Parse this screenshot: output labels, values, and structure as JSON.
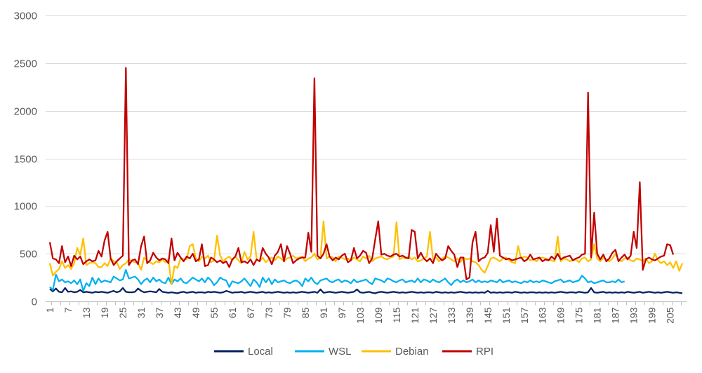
{
  "chart_data": {
    "type": "line",
    "title": "",
    "xlabel": "",
    "ylabel": "",
    "x_start": 1,
    "x_end": 209,
    "x_tick_labels": [
      "1",
      "7",
      "13",
      "19",
      "25",
      "31",
      "37",
      "43",
      "49",
      "55",
      "61",
      "67",
      "73",
      "79",
      "85",
      "91",
      "97",
      "103",
      "109",
      "115",
      "121",
      "127",
      "133",
      "139",
      "145",
      "151",
      "157",
      "163",
      "169",
      "175",
      "181",
      "187",
      "193",
      "199",
      "205"
    ],
    "y_tick_labels": [
      "0",
      "500",
      "1000",
      "1500",
      "2000",
      "2500",
      "3000"
    ],
    "ylim": [
      0,
      3000
    ],
    "grid": true,
    "legend_position": "bottom",
    "legend": [
      "Local",
      "WSL",
      "Debian",
      "RPI"
    ],
    "series": [
      {
        "name": "Local",
        "color": "#002060",
        "start_x": 1,
        "values": [
          130,
          105,
          135,
          100,
          95,
          140,
          100,
          105,
          95,
          100,
          120,
          95,
          100,
          95,
          90,
          100,
          95,
          100,
          95,
          90,
          100,
          110,
          95,
          105,
          140,
          100,
          95,
          95,
          100,
          135,
          110,
          95,
          100,
          105,
          100,
          95,
          130,
          100,
          95,
          90,
          95,
          90,
          85,
          95,
          100,
          90,
          95,
          100,
          90,
          95,
          95,
          90,
          100,
          95,
          100,
          95,
          90,
          95,
          110,
          100,
          90,
          95,
          95,
          100,
          90,
          95,
          100,
          95,
          90,
          95,
          100,
          90,
          95,
          90,
          95,
          100,
          95,
          90,
          95,
          90,
          95,
          90,
          95,
          100,
          95,
          90,
          95,
          100,
          90,
          125,
          90,
          95,
          100,
          95,
          90,
          95,
          100,
          95,
          90,
          95,
          100,
          125,
          95,
          90,
          95,
          100,
          90,
          85,
          95,
          100,
          95,
          90,
          95,
          100,
          95,
          90,
          95,
          90,
          95,
          100,
          95,
          90,
          95,
          90,
          95,
          95,
          90,
          100,
          95,
          90,
          95,
          90,
          95,
          90,
          95,
          100,
          95,
          90,
          95,
          90,
          95,
          90,
          95,
          90,
          110,
          90,
          95,
          90,
          95,
          90,
          95,
          95,
          90,
          100,
          95,
          90,
          95,
          90,
          95,
          95,
          90,
          95,
          90,
          95,
          90,
          95,
          90,
          95,
          100,
          95,
          90,
          95,
          95,
          90,
          100,
          95,
          90,
          95,
          140,
          95,
          90,
          95,
          100,
          90,
          95,
          90,
          95,
          90,
          95,
          90,
          100,
          95,
          90,
          95,
          100,
          90,
          95,
          100,
          95,
          90,
          95,
          90,
          95,
          100,
          95,
          90,
          95,
          90,
          85
        ]
      },
      {
        "name": "WSL",
        "color": "#00b0f0",
        "start_x": 1,
        "values": [
          150,
          120,
          280,
          210,
          230,
          200,
          210,
          190,
          220,
          180,
          230,
          110,
          190,
          160,
          250,
          180,
          240,
          200,
          220,
          210,
          200,
          260,
          240,
          220,
          230,
          330,
          240,
          250,
          260,
          230,
          180,
          220,
          240,
          200,
          250,
          210,
          230,
          200,
          190,
          250,
          180,
          230,
          210,
          240,
          200,
          190,
          220,
          250,
          230,
          210,
          240,
          200,
          250,
          220,
          170,
          200,
          250,
          230,
          220,
          150,
          210,
          200,
          190,
          210,
          240,
          200,
          160,
          230,
          200,
          150,
          250,
          200,
          240,
          180,
          230,
          200,
          210,
          220,
          200,
          190,
          210,
          220,
          200,
          160,
          240,
          210,
          250,
          200,
          180,
          220,
          230,
          240,
          210,
          200,
          220,
          230,
          200,
          220,
          210,
          190,
          230,
          200,
          210,
          220,
          230,
          200,
          180,
          240,
          230,
          220,
          200,
          240,
          230,
          210,
          200,
          220,
          230,
          200,
          210,
          220,
          200,
          240,
          200,
          230,
          220,
          200,
          230,
          210,
          200,
          220,
          240,
          200,
          170,
          210,
          230,
          200,
          220,
          200,
          210,
          230,
          200,
          220,
          200,
          210,
          200,
          220,
          210,
          200,
          230,
          200,
          210,
          220,
          200,
          210,
          200,
          190,
          210,
          200,
          220,
          200,
          210,
          200,
          220,
          210,
          200,
          190,
          210,
          220,
          230,
          200,
          210,
          220,
          200,
          210,
          220,
          270,
          240,
          200,
          210,
          190,
          200,
          210,
          220,
          200,
          200,
          210,
          200,
          230,
          200,
          210
        ]
      },
      {
        "name": "Debian",
        "color": "#ffc000",
        "start_x": 1,
        "values": [
          400,
          270,
          310,
          340,
          420,
          350,
          380,
          340,
          400,
          560,
          490,
          660,
          380,
          400,
          410,
          400,
          360,
          360,
          400,
          370,
          450,
          420,
          410,
          340,
          380,
          400,
          440,
          420,
          410,
          400,
          330,
          460,
          420,
          410,
          390,
          420,
          410,
          440,
          410,
          440,
          180,
          370,
          350,
          450,
          440,
          440,
          580,
          600,
          450,
          420,
          470,
          450,
          480,
          410,
          430,
          690,
          480,
          420,
          450,
          470,
          430,
          470,
          430,
          400,
          520,
          440,
          470,
          730,
          440,
          420,
          460,
          410,
          440,
          460,
          430,
          470,
          450,
          420,
          450,
          460,
          480,
          450,
          460,
          470,
          420,
          450,
          460,
          500,
          440,
          460,
          840,
          450,
          470,
          460,
          420,
          470,
          460,
          440,
          450,
          430,
          460,
          440,
          420,
          470,
          450,
          480,
          420,
          450,
          460,
          470,
          450,
          440,
          460,
          470,
          830,
          440,
          460,
          450,
          470,
          440,
          460,
          420,
          430,
          450,
          470,
          730,
          440,
          460,
          420,
          450,
          470,
          460,
          440,
          420,
          450,
          410,
          460,
          440,
          450,
          420,
          410,
          380,
          330,
          300,
          370,
          450,
          460,
          440,
          420,
          450,
          460,
          430,
          410,
          400,
          580,
          450,
          470,
          460,
          430,
          440,
          420,
          450,
          460,
          450,
          440,
          430,
          420,
          680,
          420,
          450,
          440,
          420,
          430,
          440,
          410,
          450,
          460,
          420,
          440,
          600,
          450,
          420,
          460,
          440,
          420,
          450,
          500,
          440,
          420,
          450,
          460,
          430,
          420,
          450,
          440,
          420,
          450,
          400,
          420,
          500,
          430,
          400,
          420,
          380,
          410,
          350,
          420,
          320,
          400
        ]
      },
      {
        "name": "RPI",
        "color": "#c00000",
        "start_x": 1,
        "values": [
          620,
          450,
          440,
          400,
          580,
          410,
          470,
          370,
          480,
          440,
          470,
          390,
          420,
          440,
          420,
          430,
          530,
          470,
          640,
          730,
          450,
          380,
          420,
          450,
          480,
          2450,
          380,
          430,
          440,
          390,
          580,
          680,
          400,
          430,
          510,
          460,
          430,
          450,
          440,
          400,
          660,
          430,
          510,
          460,
          420,
          470,
          450,
          500,
          420,
          440,
          600,
          370,
          380,
          460,
          440,
          410,
          430,
          400,
          420,
          360,
          440,
          470,
          560,
          410,
          420,
          400,
          440,
          380,
          440,
          420,
          560,
          500,
          460,
          390,
          480,
          520,
          600,
          420,
          580,
          500,
          400,
          430,
          450,
          460,
          460,
          720,
          520,
          2340,
          480,
          450,
          500,
          600,
          470,
          430,
          460,
          440,
          480,
          500,
          410,
          430,
          560,
          450,
          480,
          530,
          510,
          400,
          450,
          650,
          840,
          490,
          500,
          480,
          470,
          490,
          500,
          470,
          480,
          460,
          450,
          750,
          730,
          450,
          510,
          450,
          420,
          450,
          400,
          500,
          460,
          430,
          450,
          580,
          530,
          490,
          360,
          460,
          460,
          230,
          250,
          620,
          730,
          420,
          450,
          460,
          510,
          800,
          520,
          870,
          480,
          460,
          440,
          450,
          430,
          440,
          450,
          460,
          420,
          440,
          490,
          440,
          450,
          460,
          420,
          440,
          430,
          470,
          440,
          500,
          440,
          460,
          470,
          480,
          430,
          450,
          460,
          490,
          500,
          2190,
          460,
          930,
          500,
          440,
          490,
          420,
          450,
          510,
          540,
          420,
          460,
          490,
          440,
          480,
          730,
          560,
          1250,
          330,
          440,
          460,
          440,
          430,
          450,
          470,
          480,
          600,
          590,
          490
        ]
      }
    ]
  }
}
